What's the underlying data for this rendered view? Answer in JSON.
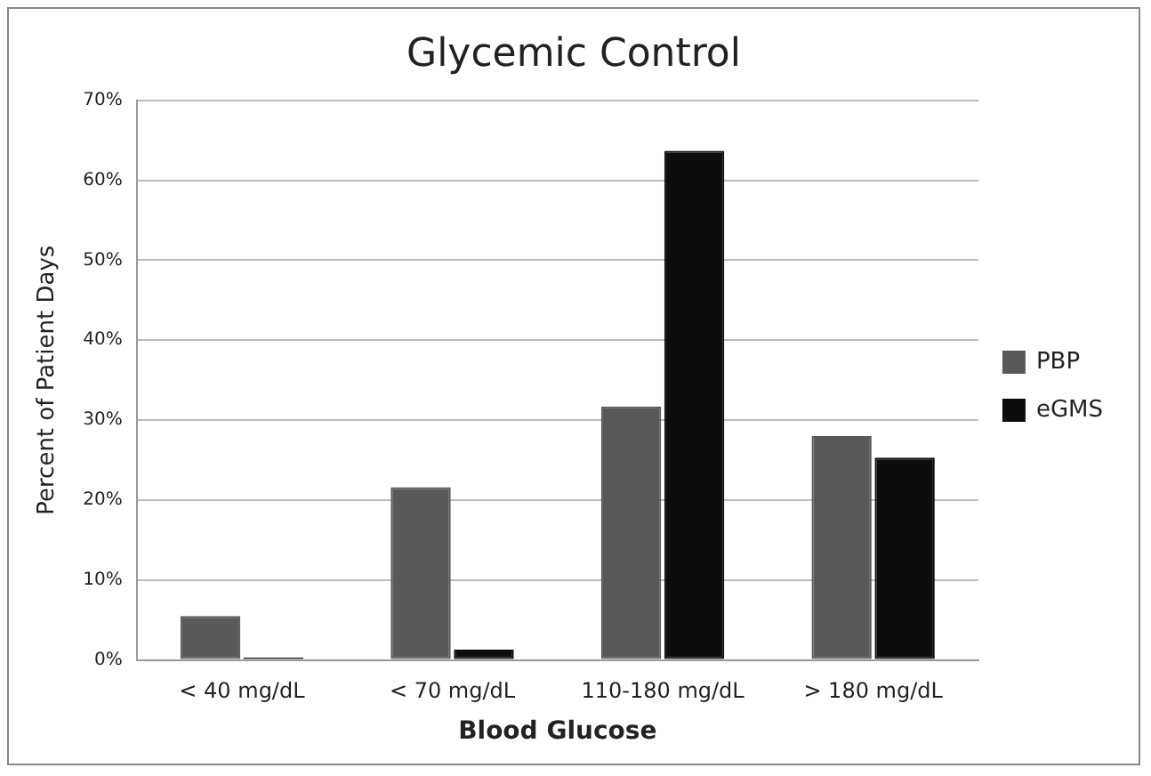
{
  "chart_data": {
    "type": "bar",
    "title": "Glycemic Control",
    "xlabel": "Blood Glucose",
    "ylabel": "Percent of Patient Days",
    "categories": [
      "< 40 mg/dL",
      "< 70 mg/dL",
      "110-180 mg/dL",
      "> 180 mg/dL"
    ],
    "series": [
      {
        "name": "PBP",
        "color": "#595959",
        "values": [
          5.5,
          21.6,
          31.7,
          28.0
        ]
      },
      {
        "name": "eGMS",
        "color": "#0d0d0d",
        "values": [
          0.3,
          1.3,
          63.7,
          25.3
        ]
      }
    ],
    "ylim": [
      0,
      70
    ],
    "yticks": [
      {
        "value": 0,
        "label": "0%"
      },
      {
        "value": 10,
        "label": "10%"
      },
      {
        "value": 20,
        "label": "20%"
      },
      {
        "value": 30,
        "label": "30%"
      },
      {
        "value": 40,
        "label": "40%"
      },
      {
        "value": 50,
        "label": "50%"
      },
      {
        "value": 60,
        "label": "60%"
      },
      {
        "value": 70,
        "label": "70%"
      }
    ],
    "grid": "y",
    "legend": "right"
  }
}
